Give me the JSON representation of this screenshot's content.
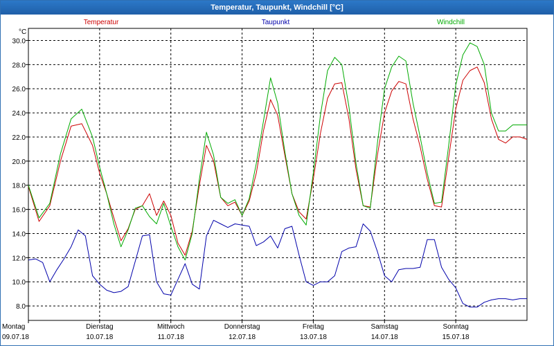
{
  "window": {
    "title": "Temperatur, Taupunkt, Windchill [°C]"
  },
  "colors": {
    "temperature": "#cc0000",
    "dewpoint": "#0000aa",
    "windchill": "#00aa00",
    "grid": "#000000",
    "titlebar": "#2c78c8"
  },
  "chart_data": {
    "type": "line",
    "title": "Temperatur, Taupunkt, Windchill [°C]",
    "unit": "°C",
    "xlabel": "",
    "ylabel": "°C",
    "ylim": [
      6.8,
      31.0
    ],
    "xlim": [
      0,
      7
    ],
    "x_unit": "days from Montag 09.07.18 00:00",
    "y_ticks": [
      "8.0",
      "10.0",
      "12.0",
      "14.0",
      "16.0",
      "18.0",
      "20.0",
      "22.0",
      "24.0",
      "26.0",
      "28.0",
      "30.0"
    ],
    "x_ticks": [
      {
        "day": "Montag",
        "date": "09.07.18"
      },
      {
        "day": "Dienstag",
        "date": "10.07.18"
      },
      {
        "day": "Mittwoch",
        "date": "11.07.18"
      },
      {
        "day": "Donnerstag",
        "date": "12.07.18"
      },
      {
        "day": "Freitag",
        "date": "13.07.18"
      },
      {
        "day": "Samstag",
        "date": "14.07.18"
      },
      {
        "day": "Sonntag",
        "date": "15.07.18"
      }
    ],
    "grid": true,
    "legend_position": "top",
    "series": [
      {
        "name": "Temperatur",
        "color": "#cc0000",
        "x": [
          0,
          0.15,
          0.3,
          0.45,
          0.6,
          0.75,
          0.9,
          1.0,
          1.1,
          1.2,
          1.3,
          1.4,
          1.5,
          1.6,
          1.7,
          1.8,
          1.9,
          2.0,
          2.1,
          2.2,
          2.3,
          2.4,
          2.5,
          2.6,
          2.7,
          2.8,
          2.9,
          3.0,
          3.1,
          3.2,
          3.3,
          3.4,
          3.5,
          3.6,
          3.7,
          3.8,
          3.9,
          4.0,
          4.1,
          4.2,
          4.3,
          4.4,
          4.5,
          4.6,
          4.7,
          4.8,
          4.9,
          5.0,
          5.1,
          5.2,
          5.3,
          5.4,
          5.5,
          5.6,
          5.7,
          5.8,
          5.9,
          6.0,
          6.1,
          6.2,
          6.3,
          6.4,
          6.5,
          6.6,
          6.7,
          6.8,
          6.9,
          7.0
        ],
        "values": [
          17.9,
          15.0,
          16.3,
          20.0,
          22.9,
          23.1,
          21.3,
          19.0,
          17.3,
          15.3,
          13.4,
          14.4,
          16.0,
          16.3,
          17.3,
          15.5,
          16.7,
          15.5,
          13.2,
          12.2,
          14.2,
          18.0,
          21.3,
          20.0,
          17.0,
          16.3,
          16.6,
          15.5,
          16.7,
          19.0,
          22.5,
          25.1,
          23.8,
          20.5,
          17.3,
          15.8,
          15.2,
          18.5,
          22.3,
          25.2,
          26.4,
          26.5,
          23.5,
          19.3,
          16.3,
          16.2,
          20.5,
          24.0,
          25.8,
          26.6,
          26.4,
          23.5,
          21.2,
          18.5,
          16.3,
          16.2,
          20.3,
          24.3,
          26.7,
          27.5,
          27.8,
          26.5,
          23.5,
          21.8,
          21.5,
          22.0,
          22.0,
          21.8
        ]
      },
      {
        "name": "Taupunkt",
        "color": "#0000aa",
        "x": [
          0,
          0.1,
          0.2,
          0.3,
          0.4,
          0.5,
          0.6,
          0.7,
          0.8,
          0.9,
          1.0,
          1.1,
          1.2,
          1.3,
          1.4,
          1.5,
          1.6,
          1.7,
          1.8,
          1.9,
          2.0,
          2.1,
          2.2,
          2.3,
          2.4,
          2.5,
          2.6,
          2.7,
          2.8,
          2.9,
          3.0,
          3.1,
          3.2,
          3.3,
          3.4,
          3.5,
          3.6,
          3.7,
          3.8,
          3.9,
          4.0,
          4.1,
          4.2,
          4.3,
          4.4,
          4.5,
          4.6,
          4.7,
          4.8,
          4.9,
          5.0,
          5.1,
          5.2,
          5.3,
          5.4,
          5.5,
          5.6,
          5.7,
          5.8,
          5.9,
          6.0,
          6.1,
          6.2,
          6.3,
          6.4,
          6.5,
          6.6,
          6.7,
          6.8,
          6.9,
          7.0
        ],
        "values": [
          11.8,
          11.9,
          11.6,
          10.0,
          11.0,
          11.9,
          12.9,
          14.3,
          13.8,
          10.5,
          9.8,
          9.3,
          9.1,
          9.2,
          9.6,
          11.7,
          13.8,
          13.9,
          10.0,
          9.0,
          8.9,
          10.2,
          11.5,
          9.8,
          9.4,
          13.8,
          15.1,
          14.8,
          14.5,
          14.8,
          14.7,
          14.6,
          13.0,
          13.3,
          13.8,
          12.8,
          14.4,
          14.6,
          12.2,
          10.0,
          9.7,
          10.0,
          10.0,
          10.5,
          12.5,
          12.8,
          12.9,
          14.8,
          14.2,
          12.5,
          10.5,
          10.0,
          11.0,
          11.1,
          11.1,
          11.2,
          13.5,
          13.5,
          11.2,
          10.2,
          9.5,
          8.2,
          7.9,
          7.9,
          8.3,
          8.5,
          8.6,
          8.6,
          8.5,
          8.6,
          8.6
        ]
      },
      {
        "name": "Windchill",
        "color": "#00aa00",
        "x": [
          0,
          0.15,
          0.3,
          0.45,
          0.6,
          0.75,
          0.9,
          1.0,
          1.1,
          1.2,
          1.3,
          1.4,
          1.5,
          1.6,
          1.7,
          1.8,
          1.9,
          2.0,
          2.1,
          2.2,
          2.3,
          2.4,
          2.5,
          2.6,
          2.7,
          2.8,
          2.9,
          3.0,
          3.1,
          3.2,
          3.3,
          3.4,
          3.5,
          3.6,
          3.7,
          3.8,
          3.9,
          4.0,
          4.1,
          4.2,
          4.3,
          4.4,
          4.5,
          4.6,
          4.7,
          4.8,
          4.9,
          5.0,
          5.1,
          5.2,
          5.3,
          5.4,
          5.5,
          5.6,
          5.7,
          5.8,
          5.9,
          6.0,
          6.1,
          6.2,
          6.3,
          6.4,
          6.5,
          6.6,
          6.7,
          6.8,
          6.9,
          7.0
        ],
        "values": [
          18.0,
          15.3,
          16.5,
          20.6,
          23.5,
          24.3,
          22.0,
          19.5,
          17.3,
          14.8,
          12.9,
          14.3,
          16.1,
          16.3,
          15.4,
          14.8,
          16.5,
          14.6,
          12.9,
          11.8,
          14.0,
          18.5,
          22.4,
          20.5,
          17.0,
          16.5,
          16.8,
          15.5,
          16.9,
          19.8,
          23.3,
          26.9,
          24.8,
          20.8,
          17.3,
          15.5,
          14.7,
          19.0,
          23.8,
          27.5,
          28.6,
          28.0,
          24.5,
          19.8,
          16.3,
          16.1,
          21.5,
          26.0,
          27.8,
          28.7,
          28.3,
          24.8,
          22.0,
          19.0,
          16.5,
          16.6,
          21.3,
          26.3,
          28.8,
          29.8,
          29.5,
          28.0,
          24.0,
          22.5,
          22.5,
          23.0,
          23.0,
          23.0
        ]
      }
    ]
  }
}
